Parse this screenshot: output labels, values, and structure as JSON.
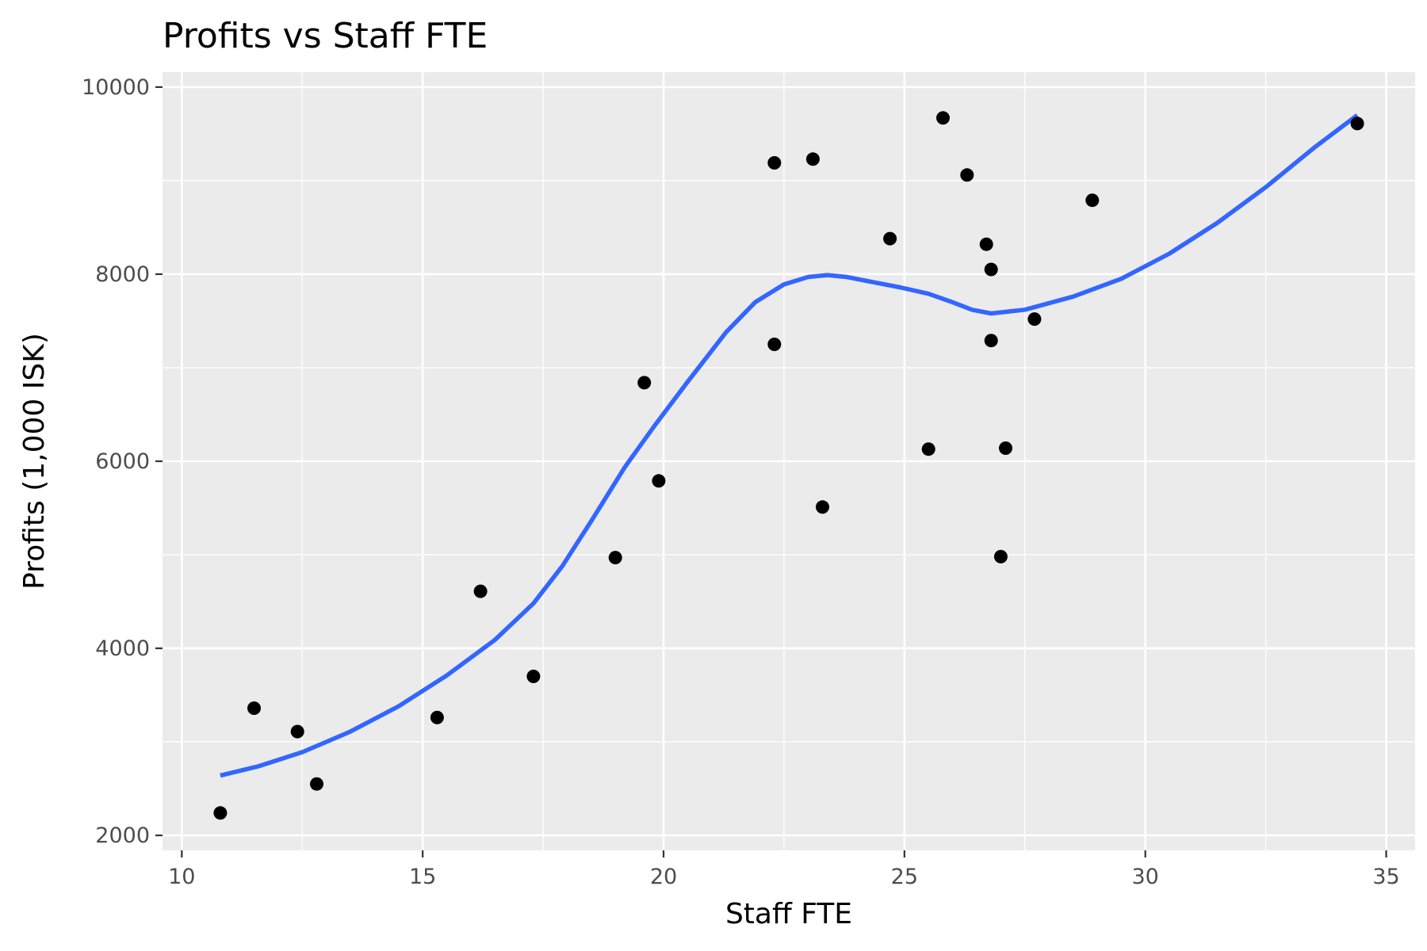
{
  "chart_data": {
    "type": "scatter",
    "title": "Profits vs Staff FTE",
    "xlabel": "Staff FTE",
    "ylabel": "Profits (1,000 ISK)",
    "xlim": [
      9.6,
      35.6
    ],
    "ylim": [
      1840,
      10160
    ],
    "x_ticks": [
      10,
      15,
      20,
      25,
      30,
      35
    ],
    "y_ticks": [
      2000,
      4000,
      6000,
      8000,
      10000
    ],
    "grid": true,
    "legend": "none",
    "colors": {
      "panel_background": "#ebebeb",
      "grid": "#ffffff",
      "points": "#000000",
      "smooth_line": "#3366ff"
    },
    "points": [
      {
        "x": 10.8,
        "y": 2240
      },
      {
        "x": 11.5,
        "y": 3360
      },
      {
        "x": 12.4,
        "y": 3110
      },
      {
        "x": 12.8,
        "y": 2550
      },
      {
        "x": 15.3,
        "y": 3260
      },
      {
        "x": 16.2,
        "y": 4610
      },
      {
        "x": 17.3,
        "y": 3700
      },
      {
        "x": 19.0,
        "y": 4970
      },
      {
        "x": 19.6,
        "y": 6840
      },
      {
        "x": 19.9,
        "y": 5790
      },
      {
        "x": 22.3,
        "y": 9190
      },
      {
        "x": 22.3,
        "y": 7250
      },
      {
        "x": 23.1,
        "y": 9230
      },
      {
        "x": 23.3,
        "y": 5510
      },
      {
        "x": 24.7,
        "y": 8380
      },
      {
        "x": 25.5,
        "y": 6130
      },
      {
        "x": 25.8,
        "y": 9670
      },
      {
        "x": 26.3,
        "y": 9060
      },
      {
        "x": 26.7,
        "y": 8320
      },
      {
        "x": 26.8,
        "y": 8050
      },
      {
        "x": 26.8,
        "y": 7290
      },
      {
        "x": 27.0,
        "y": 4980
      },
      {
        "x": 27.1,
        "y": 6140
      },
      {
        "x": 27.7,
        "y": 7520
      },
      {
        "x": 28.9,
        "y": 8790
      },
      {
        "x": 34.4,
        "y": 9610
      }
    ],
    "smooth_line": [
      {
        "x": 10.8,
        "y": 2640
      },
      {
        "x": 11.6,
        "y": 2740
      },
      {
        "x": 12.5,
        "y": 2890
      },
      {
        "x": 13.5,
        "y": 3110
      },
      {
        "x": 14.5,
        "y": 3380
      },
      {
        "x": 15.5,
        "y": 3710
      },
      {
        "x": 16.5,
        "y": 4090
      },
      {
        "x": 17.3,
        "y": 4480
      },
      {
        "x": 17.9,
        "y": 4880
      },
      {
        "x": 18.5,
        "y": 5360
      },
      {
        "x": 19.2,
        "y": 5940
      },
      {
        "x": 19.8,
        "y": 6370
      },
      {
        "x": 20.5,
        "y": 6850
      },
      {
        "x": 21.3,
        "y": 7380
      },
      {
        "x": 21.9,
        "y": 7700
      },
      {
        "x": 22.5,
        "y": 7890
      },
      {
        "x": 23.0,
        "y": 7970
      },
      {
        "x": 23.4,
        "y": 7990
      },
      {
        "x": 23.8,
        "y": 7970
      },
      {
        "x": 24.3,
        "y": 7920
      },
      {
        "x": 24.9,
        "y": 7860
      },
      {
        "x": 25.5,
        "y": 7790
      },
      {
        "x": 26.0,
        "y": 7700
      },
      {
        "x": 26.4,
        "y": 7620
      },
      {
        "x": 26.8,
        "y": 7580
      },
      {
        "x": 27.5,
        "y": 7620
      },
      {
        "x": 28.5,
        "y": 7760
      },
      {
        "x": 29.5,
        "y": 7950
      },
      {
        "x": 30.5,
        "y": 8220
      },
      {
        "x": 31.5,
        "y": 8550
      },
      {
        "x": 32.5,
        "y": 8930
      },
      {
        "x": 33.5,
        "y": 9350
      },
      {
        "x": 34.4,
        "y": 9700
      }
    ]
  }
}
